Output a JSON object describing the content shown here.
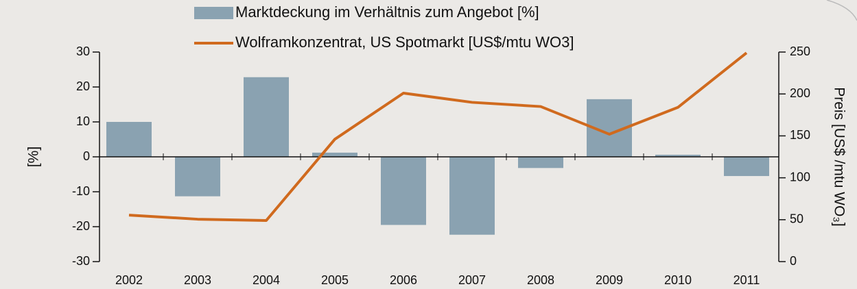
{
  "chart_data": {
    "type": "bar_line",
    "categories": [
      "2002",
      "2003",
      "2004",
      "2005",
      "2006",
      "2007",
      "2008",
      "2009",
      "2010",
      "2011"
    ],
    "series": [
      {
        "name": "Marktdeckung im Verhältnis zum Angebot [%]",
        "type": "bar",
        "color": "#8aa2b1",
        "axis": "y",
        "values": [
          10,
          -11.3,
          22.8,
          1.2,
          -19.5,
          -22.3,
          -3.2,
          16.5,
          0.6,
          -5.5
        ]
      },
      {
        "name": "Wolframkonzentrat, US Spotmarkt [US$/mtu WO3]",
        "type": "line",
        "color": "#d06a1e",
        "axis": "y2",
        "values": [
          55.5,
          50.6,
          49,
          146,
          201,
          190,
          185,
          152,
          184,
          249
        ]
      }
    ],
    "ylabel": "[%]",
    "y2label": "Preis [US$ /mtu WO₃]",
    "ylim": [
      -30,
      30
    ],
    "yticks": [
      -30,
      -20,
      -10,
      0,
      10,
      20,
      30
    ],
    "y2lim": [
      0,
      250
    ],
    "y2ticks": [
      0,
      50,
      100,
      150,
      200,
      250
    ]
  }
}
